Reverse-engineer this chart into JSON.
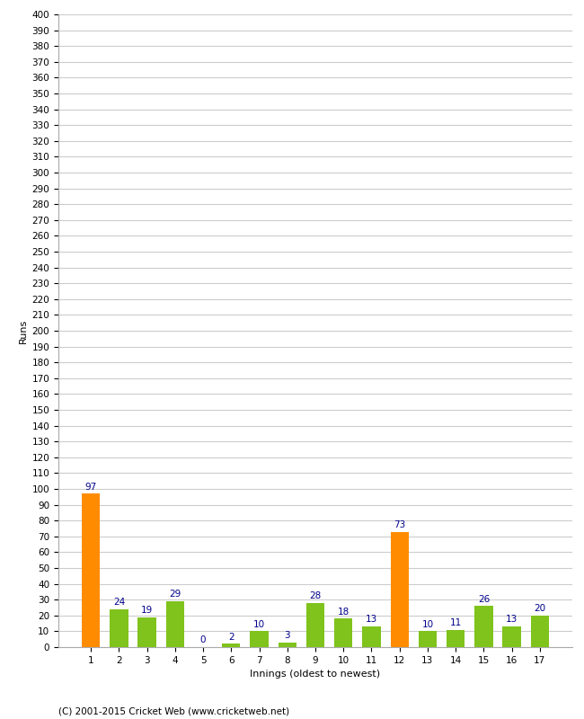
{
  "title": "",
  "xlabel": "Innings (oldest to newest)",
  "ylabel": "Runs",
  "categories": [
    1,
    2,
    3,
    4,
    5,
    6,
    7,
    8,
    9,
    10,
    11,
    12,
    13,
    14,
    15,
    16,
    17
  ],
  "values": [
    97,
    24,
    19,
    29,
    0,
    2,
    10,
    3,
    28,
    18,
    13,
    73,
    10,
    11,
    26,
    13,
    20
  ],
  "bar_colors": [
    "#ff8c00",
    "#7fc31c",
    "#7fc31c",
    "#7fc31c",
    "#7fc31c",
    "#7fc31c",
    "#7fc31c",
    "#7fc31c",
    "#7fc31c",
    "#7fc31c",
    "#7fc31c",
    "#ff8c00",
    "#7fc31c",
    "#7fc31c",
    "#7fc31c",
    "#7fc31c",
    "#7fc31c"
  ],
  "ylim": [
    0,
    400
  ],
  "yticks_step": 10,
  "value_label_color": "#00008b",
  "value_label_fontsize": 7.5,
  "axis_label_fontsize": 8,
  "tick_label_fontsize": 7.5,
  "background_color": "#ffffff",
  "grid_color": "#cccccc",
  "footer": "(C) 2001-2015 Cricket Web (www.cricketweb.net)"
}
